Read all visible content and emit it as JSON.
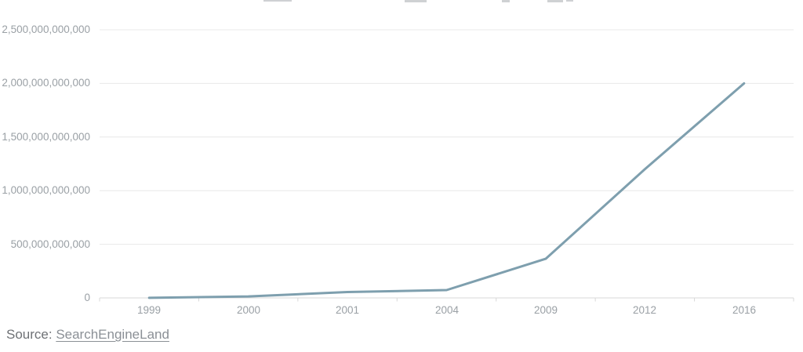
{
  "chart_data": {
    "type": "line",
    "title": "",
    "categories": [
      "1999",
      "2000",
      "2001",
      "2004",
      "2009",
      "2012",
      "2016"
    ],
    "values": [
      1000000000,
      14000000000,
      55000000000,
      73000000000,
      365000000000,
      1200000000000,
      2000000000000
    ],
    "ytick_labels": [
      "2,500,000,000,000",
      "2,000,000,000,000",
      "1,500,000,000,000",
      "1,000,000,000,000",
      "500,000,000,000",
      "0"
    ],
    "ytick_values": [
      2500000000000,
      2000000000000,
      1500000000000,
      1000000000000,
      500000000000,
      0
    ],
    "ylim": [
      0,
      2500000000000
    ],
    "grid": true,
    "legend": false,
    "line_color": "#7e9fae",
    "gridline_color": "#e8e8e8",
    "axis_color": "#d8d8d8"
  },
  "source": {
    "prefix": "Source: ",
    "link_label": "SearchEngineLand"
  }
}
